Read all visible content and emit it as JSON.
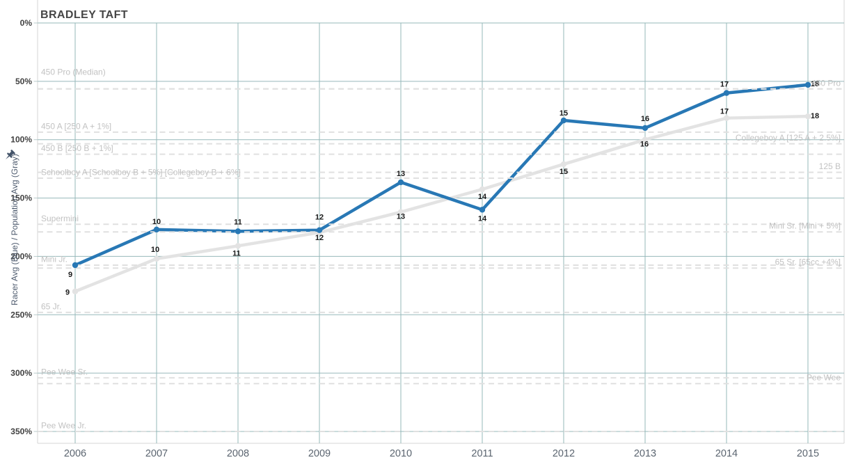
{
  "title": "BRADLEY TAFT",
  "chart_data": {
    "type": "line",
    "title": "BRADLEY TAFT",
    "x": [
      "2006",
      "2007",
      "2008",
      "2009",
      "2010",
      "2011",
      "2012",
      "2013",
      "2014",
      "2015"
    ],
    "y_axis": {
      "title": "Racer Avg (Blue) / Population Avg (Gray)",
      "unit": "%",
      "min": 0,
      "max": 350,
      "inverted": true,
      "tick_labels": [
        "0%",
        "50%",
        "100%",
        "150%",
        "200%",
        "250%",
        "300%",
        "350%"
      ]
    },
    "grid": true,
    "legend": "none",
    "series": [
      {
        "name": "Racer Avg",
        "color": "#2878b5",
        "values_pct": [
          207.5,
          177,
          178.5,
          177.5,
          136.5,
          160,
          83.5,
          90,
          60,
          53
        ],
        "point_labels": [
          "9",
          "10",
          "11",
          "12",
          "13",
          "14",
          "15",
          "16",
          "17",
          "18"
        ]
      },
      {
        "name": "Population Avg",
        "color": "#e3e3e3",
        "values_pct": [
          230,
          202,
          191,
          179.5,
          162,
          142.5,
          121,
          100,
          81.5,
          80
        ],
        "point_labels": [
          "9",
          "10",
          "11",
          "12",
          "13",
          "14",
          "15",
          "16",
          "17",
          "18"
        ]
      }
    ],
    "reference_lines": [
      {
        "label": "450 Pro (Median)",
        "side": "left",
        "pct": 56.5,
        "label_dy": -16
      },
      {
        "label": "450 Pro",
        "side": "right",
        "pct": 56.5
      },
      {
        "label": "450 A [250 A + 1%]",
        "side": "left",
        "pct": 93.5
      },
      {
        "label": "Collegeboy A [125 A + 2.5%]",
        "side": "right",
        "pct": 103.5
      },
      {
        "label": "450 B [250 B + 1%]",
        "side": "left",
        "pct": 112.5
      },
      {
        "label": "125 B",
        "side": "right",
        "pct": 128
      },
      {
        "label": "Schoolboy A [Schoolboy B + 5%] [Collegeboy B + 6%]",
        "side": "left",
        "pct": 133
      },
      {
        "label": "Supermini",
        "side": "left",
        "pct": 172.5
      },
      {
        "label": "Mini Sr. [Mini + 5%]",
        "side": "right",
        "pct": 179
      },
      {
        "label": "Mini Jr.",
        "side": "left",
        "pct": 207.5
      },
      {
        "label": "65 Sr. [65cc +4%]",
        "side": "right",
        "pct": 210
      },
      {
        "label": "65 Jr.",
        "side": "left",
        "pct": 248
      },
      {
        "label": "Pee Wee Sr.",
        "side": "left",
        "pct": 304
      },
      {
        "label": "Pee Wee",
        "side": "right",
        "pct": 309
      },
      {
        "label": "Pee Wee Jr.",
        "side": "left",
        "pct": 350
      }
    ],
    "colors": {
      "racer_line": "#2878b5",
      "population_line": "#e3e3e3",
      "gridline": "#96b8ba",
      "reference_dash": "#e0e0e0",
      "axis_line": "#d4d4d4",
      "reference_label": "#c2c2c2",
      "data_label": "#1a1a1a",
      "pin": "#44546a"
    }
  }
}
